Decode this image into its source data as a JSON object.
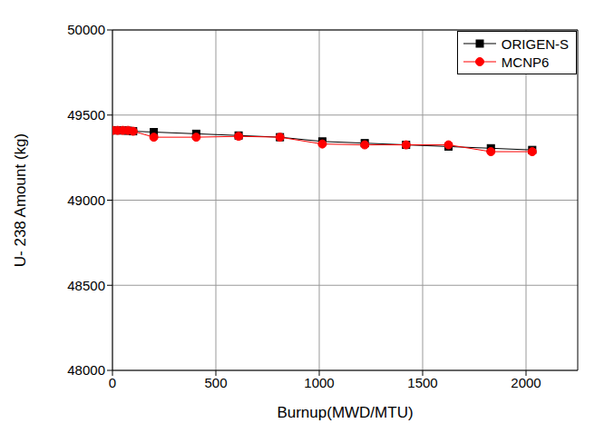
{
  "chart_data": {
    "type": "line",
    "x_label": "Burnup(MWD/MTU)",
    "y_label": "U- 238 Amount (kg)",
    "x": [
      0,
      25,
      50,
      75,
      100,
      200,
      405,
      610,
      810,
      1015,
      1220,
      1420,
      1625,
      1830,
      2030
    ],
    "series": [
      {
        "name": "ORIGEN-S",
        "color": "#000000",
        "marker": "square",
        "values": [
          49410,
          49410,
          49410,
          49408,
          49405,
          49400,
          49390,
          49380,
          49370,
          49345,
          49335,
          49325,
          49315,
          49305,
          49295
        ]
      },
      {
        "name": "MCNP6",
        "color": "#ff0000",
        "marker": "circle",
        "values": [
          49410,
          49410,
          49410,
          49410,
          49405,
          49370,
          49370,
          49375,
          49370,
          49330,
          49325,
          49325,
          49325,
          49285,
          49285
        ]
      }
    ],
    "xlim": [
      0,
      2250
    ],
    "xticks": [
      0,
      500,
      1000,
      1500,
      2000
    ],
    "ylim": [
      48000,
      50000
    ],
    "yticks": [
      48000,
      48500,
      49000,
      49500,
      50000
    ],
    "grid": true,
    "legend": "upper right"
  }
}
